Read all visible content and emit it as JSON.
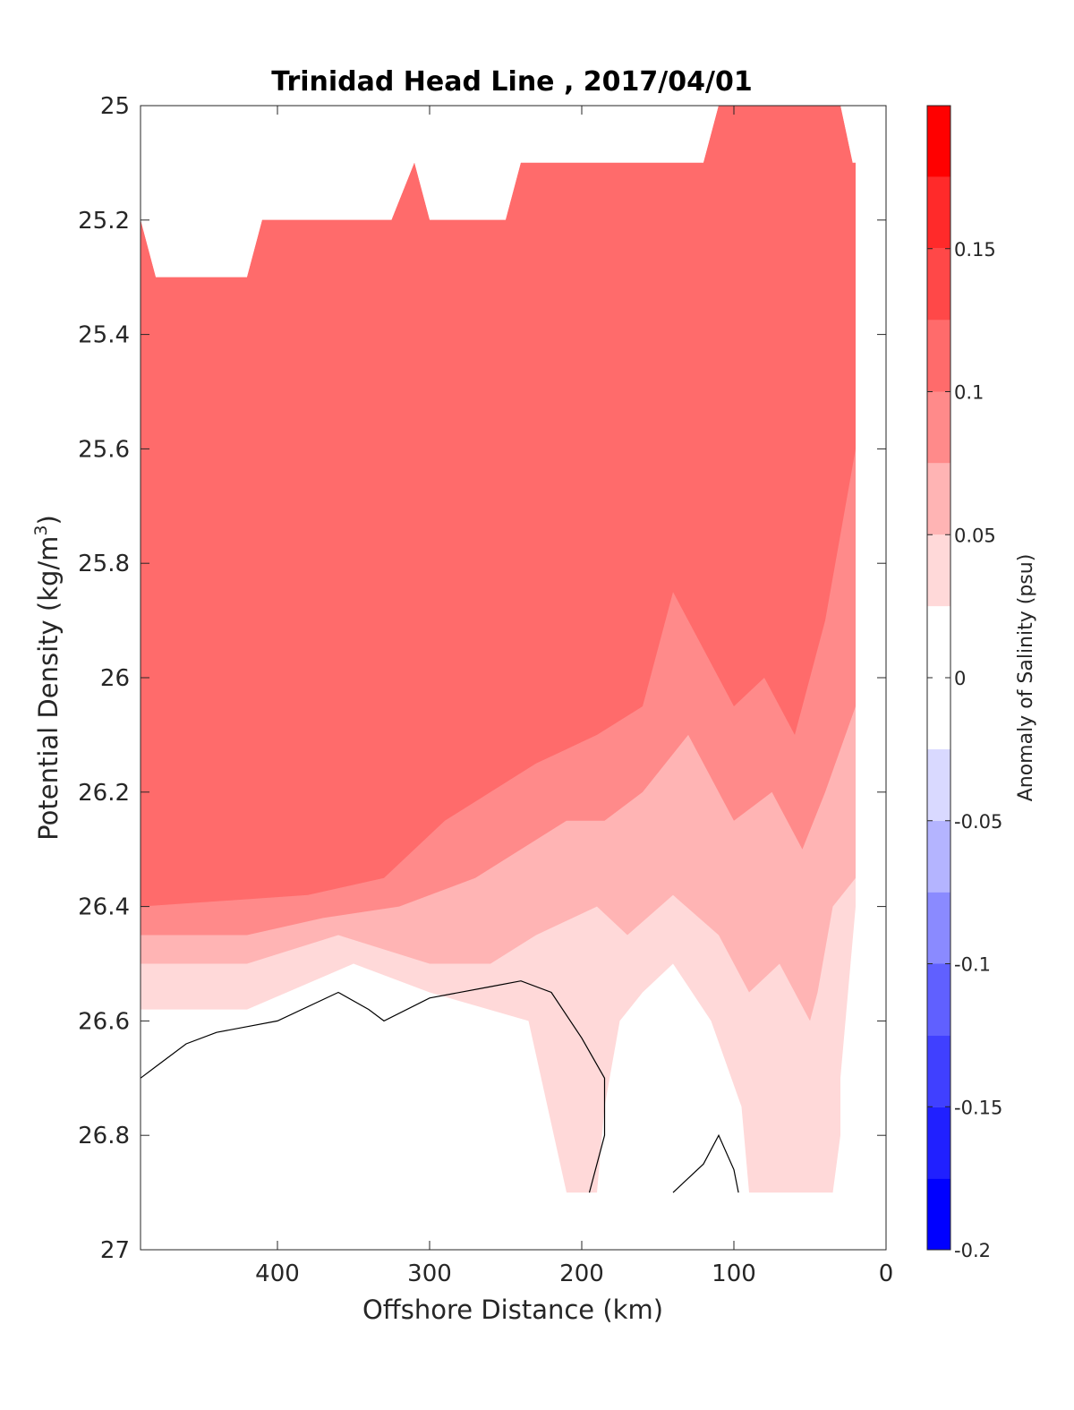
{
  "chart_data": {
    "type": "contourf",
    "title": "Trinidad Head Line , 2017/04/01",
    "xlabel": "Offshore Distance (km)",
    "ylabel": "Potential Density (kg/m",
    "ylabel_sup": "3",
    "ylabel_close": ")",
    "x_axis": {
      "range": [
        490,
        0
      ],
      "reversed": true,
      "ticks": [
        400,
        300,
        200,
        100,
        0
      ],
      "tick_labels": [
        "400",
        "300",
        "200",
        "100",
        "0"
      ]
    },
    "y_axis": {
      "range": [
        25,
        27
      ],
      "reversed": true,
      "ticks": [
        25,
        25.2,
        25.4,
        25.6,
        25.8,
        26,
        26.2,
        26.4,
        26.6,
        26.8,
        27
      ],
      "tick_labels": [
        "25",
        "25.2",
        "25.4",
        "25.6",
        "25.8",
        "26",
        "26.2",
        "26.4",
        "26.6",
        "26.8",
        "27"
      ]
    },
    "colorbar": {
      "label": "Anomaly of Salinity (psu)",
      "range": [
        -0.2,
        0.2
      ],
      "levels": [
        {
          "from": -0.2,
          "to": -0.175,
          "color": "#0000ff"
        },
        {
          "from": -0.175,
          "to": -0.15,
          "color": "#2020ff"
        },
        {
          "from": -0.15,
          "to": -0.125,
          "color": "#4040ff"
        },
        {
          "from": -0.125,
          "to": -0.1,
          "color": "#6060ff"
        },
        {
          "from": -0.1,
          "to": -0.075,
          "color": "#8a8aff"
        },
        {
          "from": -0.075,
          "to": -0.05,
          "color": "#b4b4ff"
        },
        {
          "from": -0.05,
          "to": -0.025,
          "color": "#d9d9ff"
        },
        {
          "from": -0.025,
          "to": 0.025,
          "color": "#ffffff"
        },
        {
          "from": 0.025,
          "to": 0.05,
          "color": "#ffd9d9"
        },
        {
          "from": 0.05,
          "to": 0.075,
          "color": "#ffb4b4"
        },
        {
          "from": 0.075,
          "to": 0.1,
          "color": "#ff8a8a"
        },
        {
          "from": 0.1,
          "to": 0.125,
          "color": "#ff6b6b"
        },
        {
          "from": 0.125,
          "to": 0.15,
          "color": "#ff4848"
        },
        {
          "from": 0.15,
          "to": 0.175,
          "color": "#ff2a2a"
        },
        {
          "from": 0.175,
          "to": 0.2,
          "color": "#ff0000"
        }
      ],
      "ticks": [
        0.15,
        0.1,
        0.05,
        0,
        -0.05,
        -0.1,
        -0.15,
        -0.2
      ],
      "tick_labels": [
        "0.15",
        "0.1",
        "0.05",
        "0",
        "-0.05",
        "-0.1",
        "-0.15",
        "-0.2"
      ]
    },
    "regions": [
      {
        "level": 0.025,
        "points": [
          [
            490,
            25.2
          ],
          [
            480,
            25.3
          ],
          [
            420,
            25.3
          ],
          [
            410,
            25.2
          ],
          [
            325,
            25.2
          ],
          [
            310,
            25.1
          ],
          [
            300,
            25.2
          ],
          [
            250,
            25.2
          ],
          [
            240,
            25.1
          ],
          [
            120,
            25.1
          ],
          [
            110,
            25
          ],
          [
            30,
            25
          ],
          [
            22,
            25.1
          ],
          [
            20,
            25.1
          ],
          [
            20,
            26.4
          ],
          [
            30,
            26.7
          ],
          [
            30,
            26.8
          ],
          [
            35,
            26.9
          ],
          [
            90,
            26.9
          ],
          [
            95,
            26.75
          ],
          [
            115,
            26.6
          ],
          [
            140,
            26.5
          ],
          [
            160,
            26.55
          ],
          [
            175,
            26.6
          ],
          [
            185,
            26.75
          ],
          [
            190,
            26.9
          ],
          [
            210,
            26.9
          ],
          [
            235,
            26.6
          ],
          [
            300,
            26.55
          ],
          [
            350,
            26.5
          ],
          [
            420,
            26.58
          ],
          [
            490,
            26.58
          ]
        ]
      },
      {
        "level": 0.05,
        "points": [
          [
            490,
            25.2
          ],
          [
            480,
            25.3
          ],
          [
            420,
            25.3
          ],
          [
            410,
            25.2
          ],
          [
            325,
            25.2
          ],
          [
            310,
            25.1
          ],
          [
            300,
            25.2
          ],
          [
            250,
            25.2
          ],
          [
            240,
            25.1
          ],
          [
            120,
            25.1
          ],
          [
            110,
            25
          ],
          [
            30,
            25
          ],
          [
            22,
            25.1
          ],
          [
            20,
            25.1
          ],
          [
            20,
            26.35
          ],
          [
            35,
            26.4
          ],
          [
            45,
            26.55
          ],
          [
            50,
            26.6
          ],
          [
            70,
            26.5
          ],
          [
            90,
            26.55
          ],
          [
            110,
            26.45
          ],
          [
            140,
            26.38
          ],
          [
            170,
            26.45
          ],
          [
            190,
            26.4
          ],
          [
            230,
            26.45
          ],
          [
            260,
            26.5
          ],
          [
            300,
            26.5
          ],
          [
            360,
            26.45
          ],
          [
            420,
            26.5
          ],
          [
            490,
            26.5
          ]
        ]
      },
      {
        "level": 0.075,
        "points": [
          [
            490,
            25.2
          ],
          [
            480,
            25.3
          ],
          [
            420,
            25.3
          ],
          [
            410,
            25.2
          ],
          [
            325,
            25.2
          ],
          [
            310,
            25.1
          ],
          [
            300,
            25.2
          ],
          [
            250,
            25.2
          ],
          [
            240,
            25.1
          ],
          [
            120,
            25.1
          ],
          [
            110,
            25
          ],
          [
            30,
            25
          ],
          [
            22,
            25.1
          ],
          [
            20,
            25.1
          ],
          [
            20,
            26.05
          ],
          [
            40,
            26.2
          ],
          [
            55,
            26.3
          ],
          [
            75,
            26.2
          ],
          [
            100,
            26.25
          ],
          [
            130,
            26.1
          ],
          [
            160,
            26.2
          ],
          [
            185,
            26.25
          ],
          [
            210,
            26.25
          ],
          [
            240,
            26.3
          ],
          [
            270,
            26.35
          ],
          [
            320,
            26.4
          ],
          [
            370,
            26.42
          ],
          [
            420,
            26.45
          ],
          [
            490,
            26.45
          ]
        ]
      },
      {
        "level": 0.1,
        "points": [
          [
            490,
            25.2
          ],
          [
            480,
            25.3
          ],
          [
            420,
            25.3
          ],
          [
            410,
            25.2
          ],
          [
            325,
            25.2
          ],
          [
            310,
            25.1
          ],
          [
            300,
            25.2
          ],
          [
            250,
            25.2
          ],
          [
            240,
            25.1
          ],
          [
            120,
            25.1
          ],
          [
            110,
            25
          ],
          [
            30,
            25
          ],
          [
            22,
            25.1
          ],
          [
            20,
            25.1
          ],
          [
            20,
            25.6
          ],
          [
            40,
            25.9
          ],
          [
            60,
            26.1
          ],
          [
            80,
            26.0
          ],
          [
            100,
            26.05
          ],
          [
            140,
            25.85
          ],
          [
            160,
            26.05
          ],
          [
            190,
            26.1
          ],
          [
            230,
            26.15
          ],
          [
            260,
            26.2
          ],
          [
            290,
            26.25
          ],
          [
            330,
            26.35
          ],
          [
            380,
            26.38
          ],
          [
            490,
            26.4
          ]
        ]
      }
    ]
  }
}
